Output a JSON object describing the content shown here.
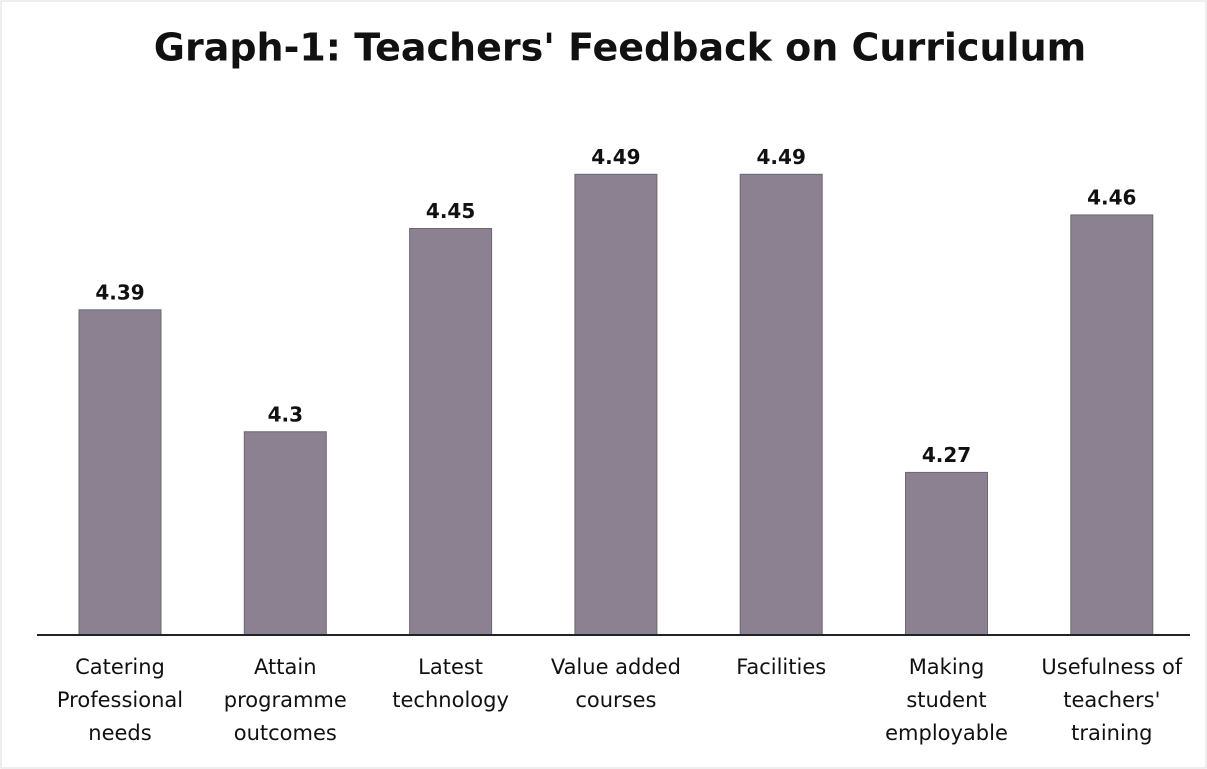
{
  "chart_data": {
    "type": "bar",
    "title": "Graph-1: Teachers' Feedback on Curriculum",
    "categories": [
      [
        "Catering",
        "Professional",
        "needs"
      ],
      [
        "Attain",
        "programme",
        "outcomes"
      ],
      [
        "Latest",
        "technology"
      ],
      [
        "Value added",
        "courses"
      ],
      [
        "Facilities"
      ],
      [
        "Making",
        "student",
        "employable"
      ],
      [
        "Usefulness of",
        "teachers'",
        "training"
      ]
    ],
    "values": [
      4.39,
      4.3,
      4.45,
      4.49,
      4.49,
      4.27,
      4.46
    ],
    "color": "#8b8190",
    "ylim": [
      4.15,
      4.55
    ]
  }
}
